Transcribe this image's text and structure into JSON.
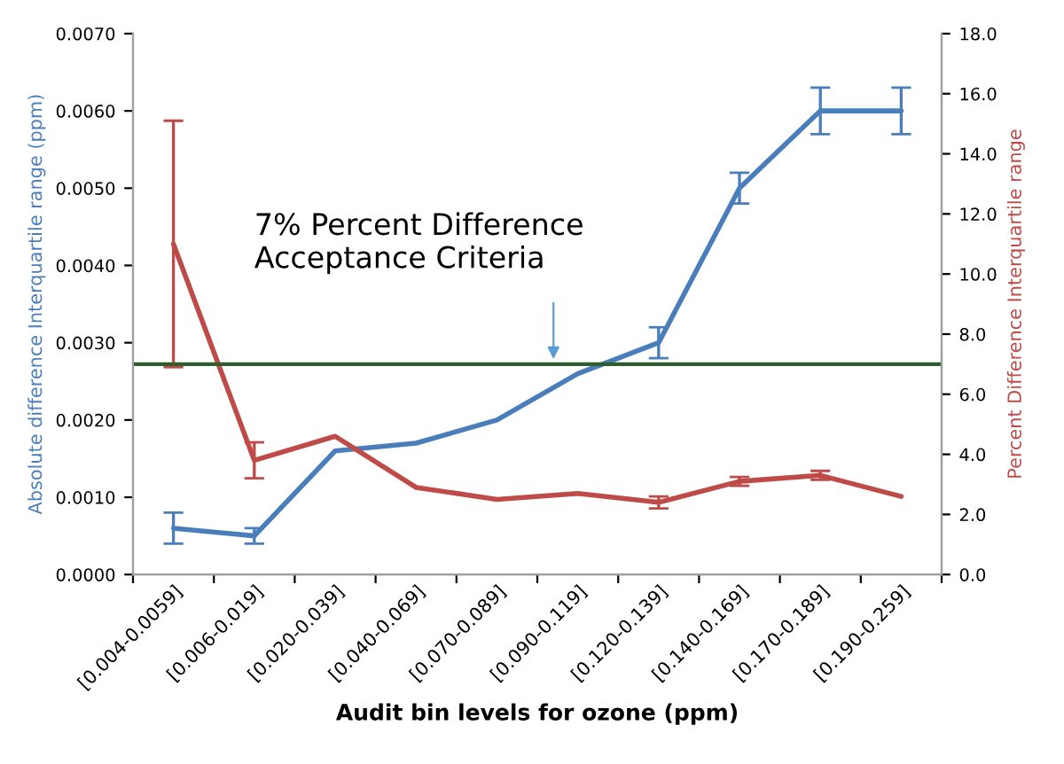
{
  "chart_data": {
    "type": "line",
    "xlabel": "Audit bin levels for ozone (ppm)",
    "ylabel": "Absolute difference Interquartile range (ppm)",
    "y2label": "Percent Difference Interquartile range",
    "categories": [
      "[0.004-0.0059]",
      "[0.006-0.019]",
      "[0.020-0.039]",
      "[0.040-0.069]",
      "[0.070-0.089]",
      "[0.090-0.119]",
      "[0.120-0.139]",
      "[0.140-0.169]",
      "[0.170-0.189]",
      "[0.190-0.259]"
    ],
    "series": [
      {
        "color": "#4a7ebb",
        "values": [
          0.0006,
          0.0005,
          0.0016,
          0.0017,
          0.002,
          0.0026,
          0.003,
          0.005,
          0.006,
          0.006
        ],
        "errors": [
          0.0002,
          0.0001,
          null,
          null,
          null,
          null,
          0.0002,
          0.0002,
          0.0003,
          0.0003
        ]
      },
      {
        "color": "#be4b48",
        "axis": "y2",
        "values": [
          11.0,
          3.8,
          4.6,
          2.9,
          2.5,
          2.7,
          2.4,
          3.1,
          3.3,
          2.6
        ],
        "errors": [
          4.1,
          0.6,
          null,
          null,
          null,
          null,
          0.2,
          0.15,
          0.15,
          null
        ]
      }
    ],
    "ylim": [
      0,
      0.007
    ],
    "yticks": [
      {
        "value": 0,
        "label": "0.0000"
      },
      {
        "value": 0.001,
        "label": "0.0010"
      },
      {
        "value": 0.002,
        "label": "0.0020"
      },
      {
        "value": 0.003,
        "label": "0.0030"
      },
      {
        "value": 0.004,
        "label": "0.0040"
      },
      {
        "value": 0.005,
        "label": "0.0050"
      },
      {
        "value": 0.006,
        "label": "0.0060"
      },
      {
        "value": 0.007,
        "label": "0.0070"
      }
    ],
    "y2lim": [
      0,
      18
    ],
    "y2ticks": [
      {
        "value": 0,
        "label": "0.0"
      },
      {
        "value": 2,
        "label": "2.0"
      },
      {
        "value": 4,
        "label": "4.0"
      },
      {
        "value": 6,
        "label": "6.0"
      },
      {
        "value": 8,
        "label": "8.0"
      },
      {
        "value": 10,
        "label": "10.0"
      },
      {
        "value": 12,
        "label": "12.0"
      },
      {
        "value": 14,
        "label": "14.0"
      },
      {
        "value": 16,
        "label": "16.0"
      },
      {
        "value": 18,
        "label": "18.0"
      }
    ],
    "ref_lines": [
      {
        "axis": "y2",
        "value": 7,
        "label": "7% Percent Difference\nAcceptance Criteria",
        "color": "#2e5e2e"
      }
    ],
    "grid": false,
    "legend": false
  }
}
